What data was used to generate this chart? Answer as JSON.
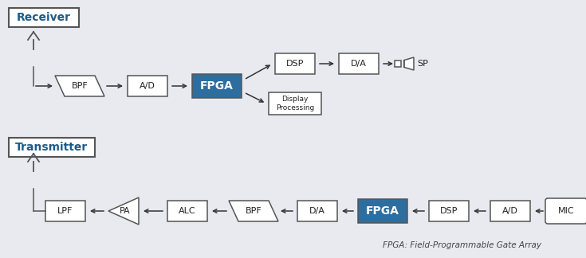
{
  "background_color": "#e8eaf0",
  "title_color": "#1b5c8a",
  "fpga_color": "#2e6e9e",
  "fpga_text_color": "#ffffff",
  "box_facecolor": "#ffffff",
  "box_edgecolor": "#555555",
  "label_color": "#222222",
  "receiver_label": "Receiver",
  "transmitter_label": "Transmitter",
  "footnote": "FPGA: Field-Programmable Gate Array",
  "fig_w": 7.35,
  "fig_h": 3.24,
  "dpi": 100
}
